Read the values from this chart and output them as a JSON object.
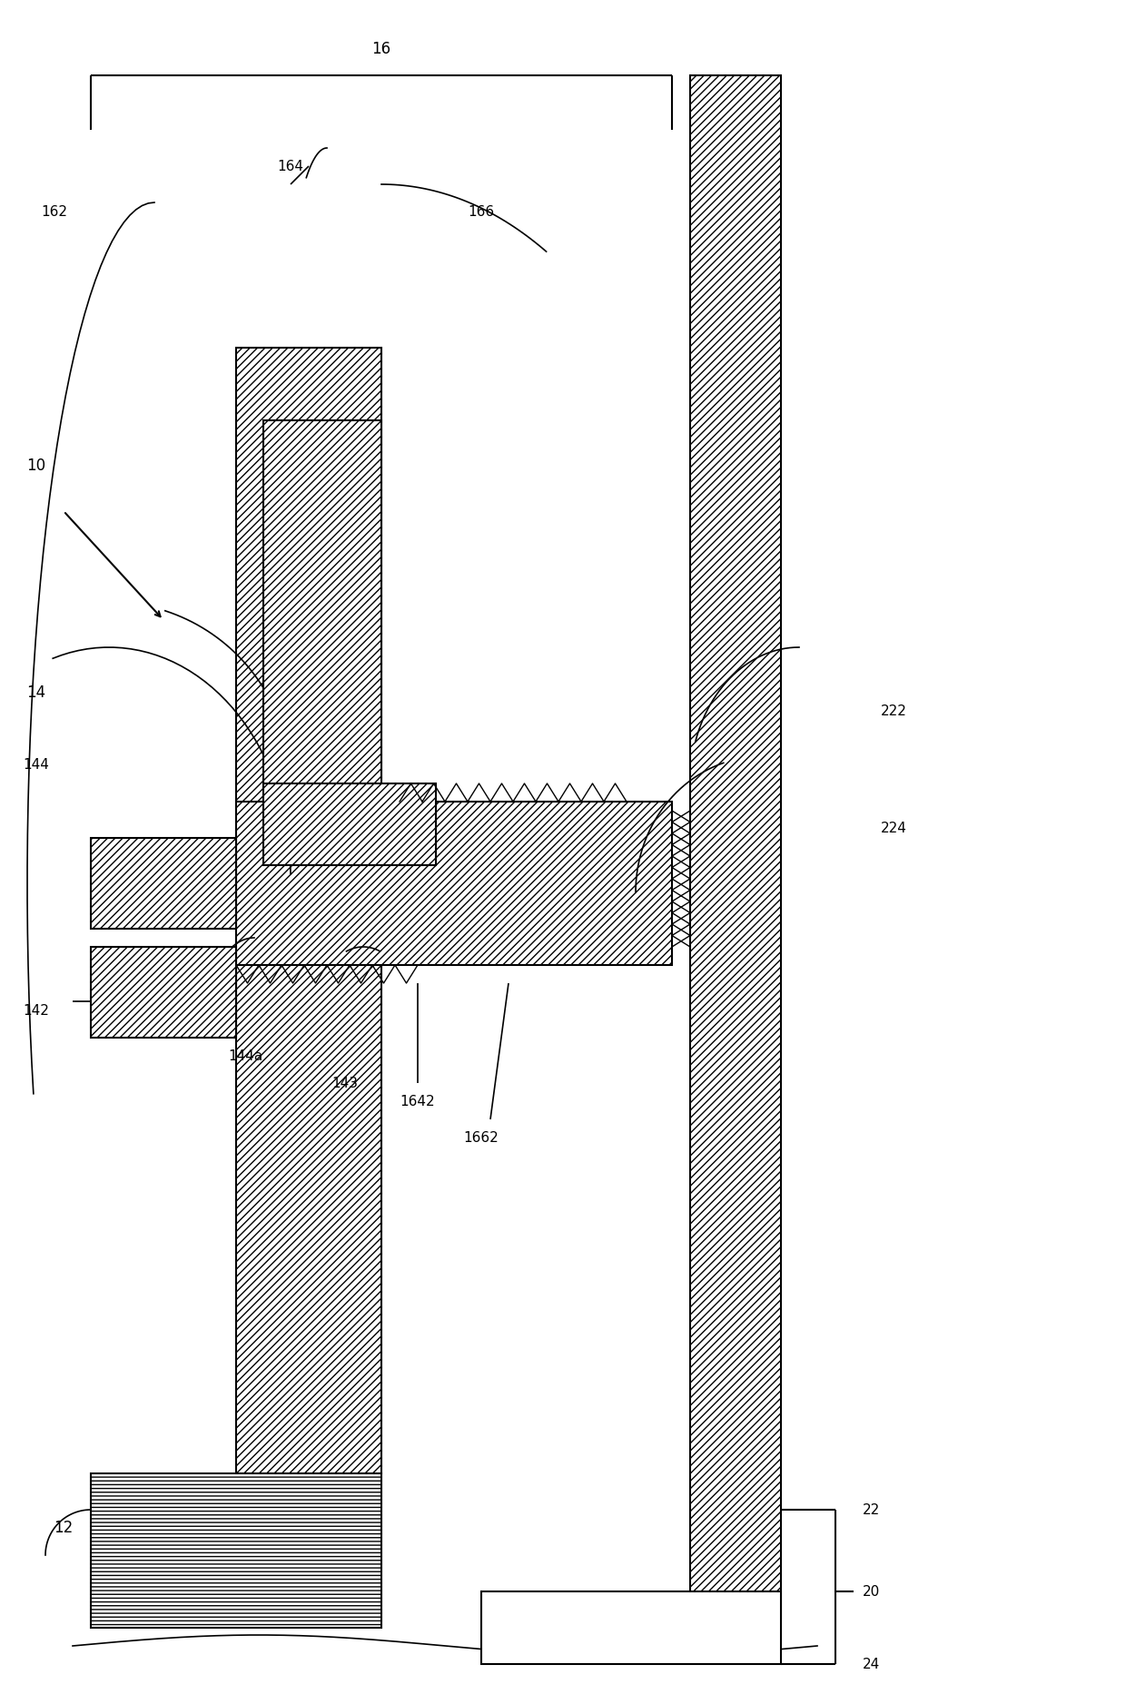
{
  "bg_color": "#ffffff",
  "figsize": [
    12.4,
    18.66
  ],
  "dpi": 100,
  "xlim": [
    0,
    124
  ],
  "ylim": [
    0,
    186
  ]
}
